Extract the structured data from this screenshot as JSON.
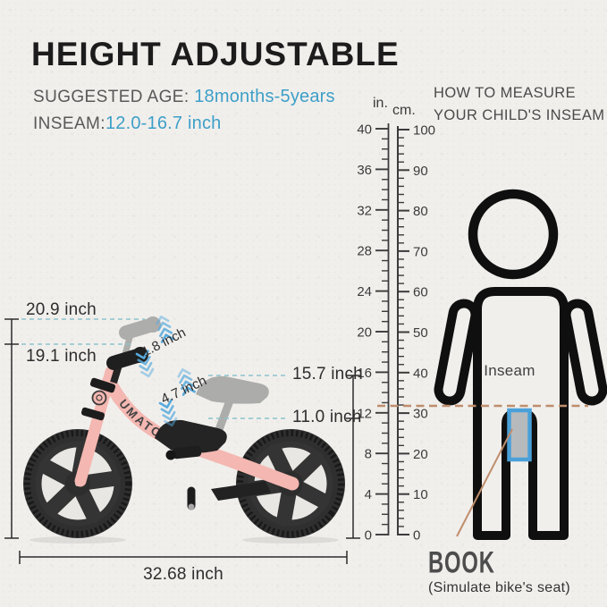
{
  "header": {
    "title": "HEIGHT ADJUSTABLE",
    "suggested_age_label": "SUGGESTED AGE:",
    "suggested_age_value": "18months-5years",
    "inseam_label": "INSEAM:",
    "inseam_value": "12.0-16.7 inch"
  },
  "howto": {
    "line1": "HOW TO MEASURE",
    "line2": "YOUR CHILD'S INSEAM"
  },
  "ruler": {
    "in_unit": "in.",
    "cm_unit": "cm.",
    "in_labels": [
      40,
      36,
      32,
      28,
      24,
      20,
      16,
      12,
      8,
      4,
      0
    ],
    "cm_labels": [
      100,
      90,
      80,
      70,
      60,
      50,
      40,
      30,
      20,
      10,
      0
    ]
  },
  "figure": {
    "inseam_label": "Inseam",
    "book_label": "BOOK",
    "book_caption": "(Simulate bike's seat)"
  },
  "bike": {
    "brand": "UMATOLL",
    "handlebar_height_max": "20.9 inch",
    "handlebar_height_min": "19.1 inch",
    "handlebar_adjust_range": "1.8 inch",
    "seat_height_max": "15.7 inch",
    "seat_height_min": "11.0 inch",
    "seat_adjust_range": "4.7 inch",
    "total_length": "32.68 inch"
  },
  "colors": {
    "accent_blue": "#3d9fc8",
    "arrow_blue": "#57a9dd",
    "teal_dash": "#8cc4cb",
    "tan_dash": "#bf8e6d",
    "bike_pink": "#f4b7b1",
    "ink": "#2e2e2e"
  }
}
